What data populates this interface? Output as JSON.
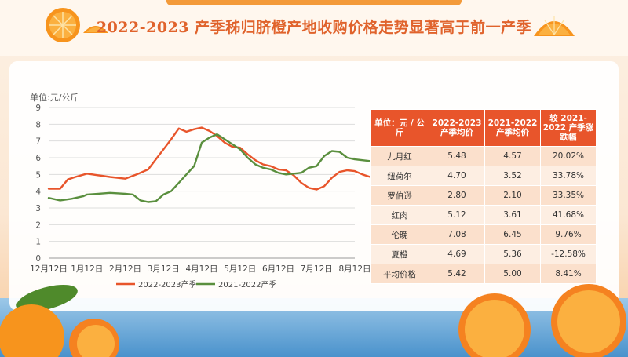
{
  "title": "2022-2023 产季秭归脐橙产地收购价格走势显著高于前一产季",
  "chart_data": {
    "type": "line",
    "unit_label": "单位:元/公斤",
    "x_ticks": [
      "12月12日",
      "1月12日",
      "2月12日",
      "3月12日",
      "4月12日",
      "5月12日",
      "6月12日",
      "7月12日",
      "8月12日"
    ],
    "ylim": [
      0,
      9
    ],
    "y_ticks": [
      0,
      1,
      2,
      3,
      4,
      5,
      6,
      7,
      8,
      9
    ],
    "grid": true,
    "legend_position": "bottom",
    "series": [
      {
        "name": "2022-2023产季",
        "color": "#e8552b",
        "x": [
          0,
          0.3,
          0.5,
          0.7,
          1,
          1.3,
          1.6,
          2,
          2.3,
          2.6,
          2.8,
          3,
          3.2,
          3.4,
          3.6,
          3.8,
          4,
          4.2,
          4.4,
          4.6,
          4.8,
          5,
          5.2,
          5.4,
          5.6,
          5.8,
          6,
          6.2,
          6.4,
          6.6,
          6.8,
          7,
          7.2,
          7.4,
          7.6,
          7.8,
          8,
          8.2,
          8.4
        ],
        "y": [
          4.15,
          4.15,
          4.7,
          4.85,
          5.05,
          4.95,
          4.85,
          4.75,
          5.0,
          5.3,
          5.9,
          6.5,
          7.1,
          7.75,
          7.55,
          7.7,
          7.8,
          7.6,
          7.3,
          6.9,
          6.65,
          6.6,
          6.2,
          5.85,
          5.6,
          5.5,
          5.3,
          5.25,
          4.95,
          4.5,
          4.2,
          4.1,
          4.3,
          4.8,
          5.15,
          5.25,
          5.2,
          5.0,
          4.85
        ]
      },
      {
        "name": "2021-2022产季",
        "color": "#5a8f3e",
        "x": [
          0,
          0.3,
          0.6,
          0.9,
          1,
          1.3,
          1.6,
          2,
          2.2,
          2.4,
          2.6,
          2.8,
          3,
          3.2,
          3.4,
          3.6,
          3.8,
          4,
          4.2,
          4.4,
          4.6,
          4.8,
          5,
          5.2,
          5.4,
          5.6,
          5.8,
          6,
          6.2,
          6.4,
          6.6,
          6.8,
          7,
          7.2,
          7.4,
          7.6,
          7.8,
          8,
          8.2,
          8.4
        ],
        "y": [
          3.6,
          3.45,
          3.55,
          3.7,
          3.8,
          3.85,
          3.9,
          3.85,
          3.8,
          3.45,
          3.35,
          3.4,
          3.8,
          4.0,
          4.5,
          5.0,
          5.5,
          6.9,
          7.2,
          7.4,
          7.1,
          6.8,
          6.5,
          6.0,
          5.6,
          5.4,
          5.3,
          5.1,
          5.0,
          5.05,
          5.1,
          5.4,
          5.5,
          6.1,
          6.4,
          6.35,
          6.0,
          5.9,
          5.85,
          5.8
        ]
      }
    ]
  },
  "table": {
    "headers": [
      "单位：元 / 公斤",
      "2022-2023 产季均价",
      "2021-2022 产季均价",
      "较 2021-2022 产季涨跌幅"
    ],
    "rows": [
      [
        "九月红",
        "5.48",
        "4.57",
        "20.02%"
      ],
      [
        "纽荷尔",
        "4.70",
        "3.52",
        "33.78%"
      ],
      [
        "罗伯逊",
        "2.80",
        "2.10",
        "33.35%"
      ],
      [
        "红肉",
        "5.12",
        "3.61",
        "41.68%"
      ],
      [
        "伦晚",
        "7.08",
        "6.45",
        "9.76%"
      ],
      [
        "夏橙",
        "4.69",
        "5.36",
        "-12.58%"
      ],
      [
        "平均价格",
        "5.42",
        "5.00",
        "8.41%"
      ]
    ]
  }
}
